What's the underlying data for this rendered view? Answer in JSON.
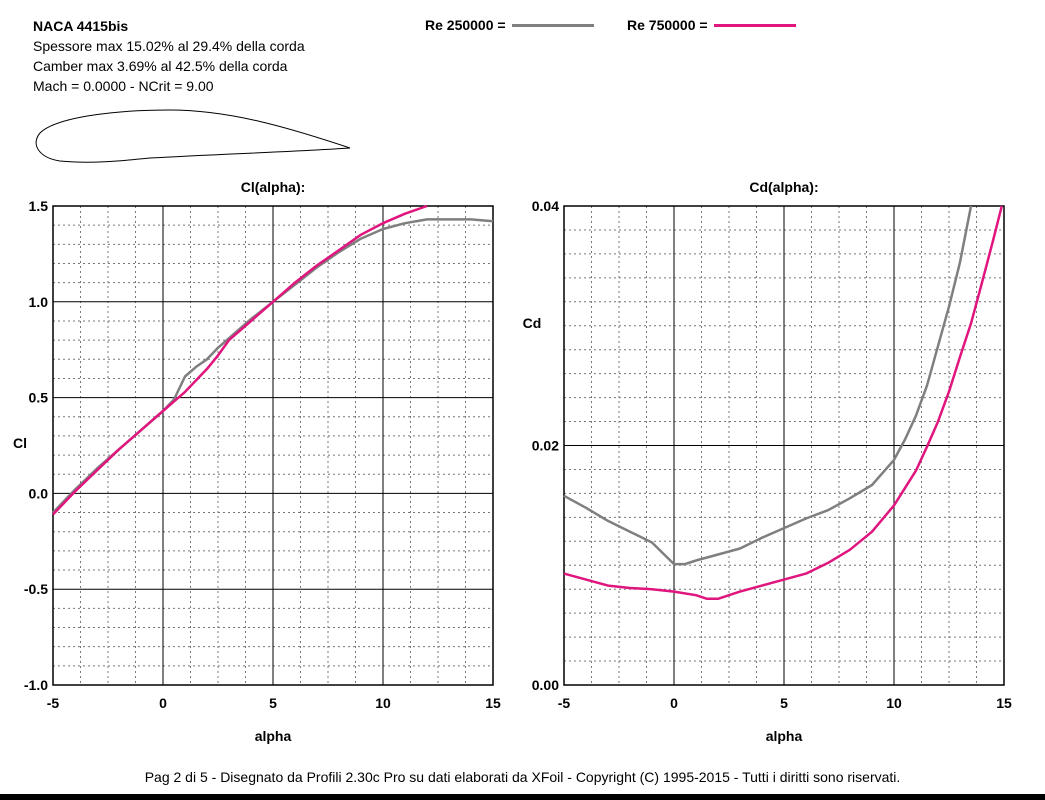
{
  "header": {
    "title": "NACA 4415bis",
    "lines": [
      "Spessore max 15.02% al 29.4% della corda",
      "Camber max 3.69% al 42.5% della corda",
      "Mach = 0.0000 - NCrit = 9.00"
    ]
  },
  "legend": [
    {
      "label": "Re 250000 =",
      "color": "#7f7f7f"
    },
    {
      "label": "Re 750000 =",
      "color": "#e0157e"
    }
  ],
  "footer": "Pag 2 di 5  -   Disegnato da Profili 2.30c Pro su dati elaborati da XFoil - Copyright (C) 1995-2015 - Tutti i diritti sono riservati.",
  "chart_data": [
    {
      "type": "line",
      "title": "Cl(alpha):",
      "xlabel": "alpha",
      "ylabel": "Cl",
      "xlim": [
        -5,
        15
      ],
      "ylim": [
        -1.0,
        1.5
      ],
      "xticks": [
        -5,
        0,
        5,
        10,
        15
      ],
      "xtick_labels": [
        "-5",
        "0",
        "5",
        "10",
        "15"
      ],
      "yticks": [
        -1.0,
        -0.5,
        0.0,
        0.5,
        1.0,
        1.5
      ],
      "ytick_labels": [
        "-1.0",
        "-0.5",
        "0.0",
        "0.5",
        "1.0",
        "1.5"
      ],
      "grid": true,
      "series": [
        {
          "name": "Re 250000",
          "color": "#7f7f7f",
          "x": [
            -5,
            -4,
            -3,
            -2,
            -1,
            0,
            0.5,
            1,
            1.5,
            2,
            2.5,
            3,
            4,
            5,
            6,
            7,
            8,
            9,
            10,
            11,
            12,
            13,
            14,
            15
          ],
          "y": [
            -0.1,
            0.02,
            0.13,
            0.23,
            0.33,
            0.43,
            0.49,
            0.61,
            0.66,
            0.7,
            0.76,
            0.81,
            0.91,
            1.0,
            1.09,
            1.18,
            1.26,
            1.33,
            1.38,
            1.41,
            1.43,
            1.43,
            1.43,
            1.42
          ]
        },
        {
          "name": "Re 750000",
          "color": "#e0157e",
          "x": [
            -5,
            -4,
            -3,
            -2,
            -1,
            0,
            0.5,
            1,
            1.5,
            2,
            2.5,
            3,
            4,
            5,
            6,
            7,
            8,
            9,
            10,
            11,
            12
          ],
          "y": [
            -0.11,
            0.01,
            0.12,
            0.23,
            0.33,
            0.43,
            0.48,
            0.53,
            0.59,
            0.65,
            0.72,
            0.8,
            0.9,
            1.0,
            1.1,
            1.19,
            1.27,
            1.35,
            1.41,
            1.46,
            1.5
          ]
        }
      ]
    },
    {
      "type": "line",
      "title": "Cd(alpha):",
      "xlabel": "alpha",
      "ylabel": "Cd",
      "xlim": [
        -5,
        15
      ],
      "ylim": [
        0.0,
        0.04
      ],
      "xticks": [
        -5,
        0,
        5,
        10,
        15
      ],
      "xtick_labels": [
        "-5",
        "0",
        "5",
        "10",
        "15"
      ],
      "yticks": [
        0.0,
        0.02,
        0.04
      ],
      "ytick_labels": [
        "0.00",
        "0.02",
        "0.04"
      ],
      "grid": true,
      "series": [
        {
          "name": "Re 250000",
          "color": "#7f7f7f",
          "x": [
            -5,
            -4,
            -3,
            -2,
            -1,
            0,
            0.5,
            1,
            2,
            3,
            4,
            5,
            6,
            7,
            8,
            9,
            10,
            10.5,
            11,
            11.5,
            12,
            12.5,
            13,
            13.5
          ],
          "y": [
            0.0158,
            0.0148,
            0.0137,
            0.0128,
            0.0119,
            0.0101,
            0.0101,
            0.0104,
            0.0109,
            0.0114,
            0.0123,
            0.0131,
            0.0139,
            0.0146,
            0.0156,
            0.0167,
            0.0188,
            0.0205,
            0.0225,
            0.025,
            0.0283,
            0.0316,
            0.0353,
            0.04
          ]
        },
        {
          "name": "Re 750000",
          "color": "#e0157e",
          "x": [
            -5,
            -4,
            -3,
            -2,
            -1,
            0,
            1,
            1.5,
            2,
            3,
            4,
            5,
            6,
            7,
            8,
            9,
            10,
            11,
            11.5,
            12,
            12.5,
            13,
            13.5,
            14,
            14.5,
            14.9
          ],
          "y": [
            0.0093,
            0.0088,
            0.0083,
            0.0081,
            0.008,
            0.0078,
            0.0075,
            0.0072,
            0.0072,
            0.0078,
            0.0083,
            0.0088,
            0.0093,
            0.0102,
            0.0113,
            0.0128,
            0.015,
            0.0179,
            0.0199,
            0.022,
            0.0245,
            0.0274,
            0.0302,
            0.0336,
            0.0371,
            0.04
          ]
        }
      ]
    }
  ]
}
